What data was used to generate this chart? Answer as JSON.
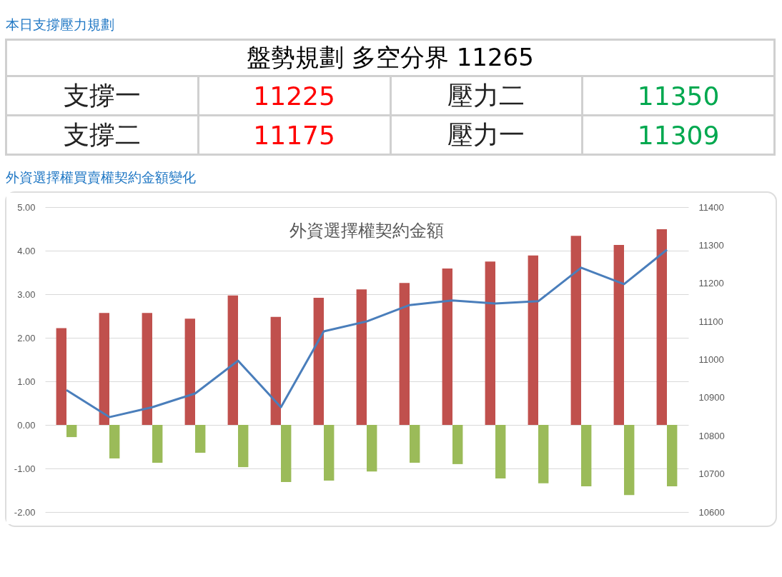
{
  "chart_data": [
    {
      "type": "other",
      "title": "本日支撐壓力規劃",
      "annotations": [
        "盤勢規劃 多空分界 11265",
        "支撐一",
        "11225",
        "壓力二",
        "11350",
        "支撐二",
        "11175",
        "壓力一",
        "11309"
      ]
    },
    {
      "type": "bar",
      "subtitle": "外資選擇權買賣權契約金額變化",
      "title": "外資選擇權契約金額",
      "categories": [
        null,
        null,
        null,
        null,
        null,
        null,
        null,
        null,
        null,
        null,
        null,
        null,
        null,
        null,
        null
      ],
      "series": [
        {
          "color": "#c0504d",
          "values": [
            2.22,
            2.57,
            2.57,
            2.44,
            2.97,
            2.48,
            2.92,
            3.11,
            3.26,
            3.59,
            3.75,
            3.89,
            4.34,
            4.13,
            4.49
          ]
        },
        {
          "color": "#9bbb59",
          "values": [
            -0.28,
            -0.77,
            -0.87,
            -0.64,
            -0.97,
            -1.31,
            -1.28,
            -1.07,
            -0.87,
            -0.9,
            -1.23,
            -1.34,
            -1.41,
            -1.61,
            -1.41
          ]
        },
        {
          "type": "line",
          "axis": "y2",
          "color": "#4a7ebb",
          "values": [
            10920,
            10849,
            10875,
            10911,
            10997,
            10875,
            11074,
            11100,
            11143,
            11155,
            11147,
            11153,
            11241,
            11198,
            11288
          ]
        }
      ],
      "ylim": [
        -2,
        5
      ],
      "yticks": [
        {
          "value": -2,
          "label": "-2.00"
        },
        {
          "value": -1,
          "label": "-1.00"
        },
        {
          "value": 0,
          "label": "0.00"
        },
        {
          "value": 1,
          "label": "1.00"
        },
        {
          "value": 2,
          "label": "2.00"
        },
        {
          "value": 3,
          "label": "3.00"
        },
        {
          "value": 4,
          "label": "4.00"
        },
        {
          "value": 5,
          "label": "5.00"
        }
      ],
      "y2lim": [
        10600,
        11400
      ],
      "y2ticks": [
        10600,
        10700,
        10800,
        10900,
        11000,
        11100,
        11200,
        11300,
        11400
      ],
      "grid": "y",
      "legend": false
    }
  ]
}
